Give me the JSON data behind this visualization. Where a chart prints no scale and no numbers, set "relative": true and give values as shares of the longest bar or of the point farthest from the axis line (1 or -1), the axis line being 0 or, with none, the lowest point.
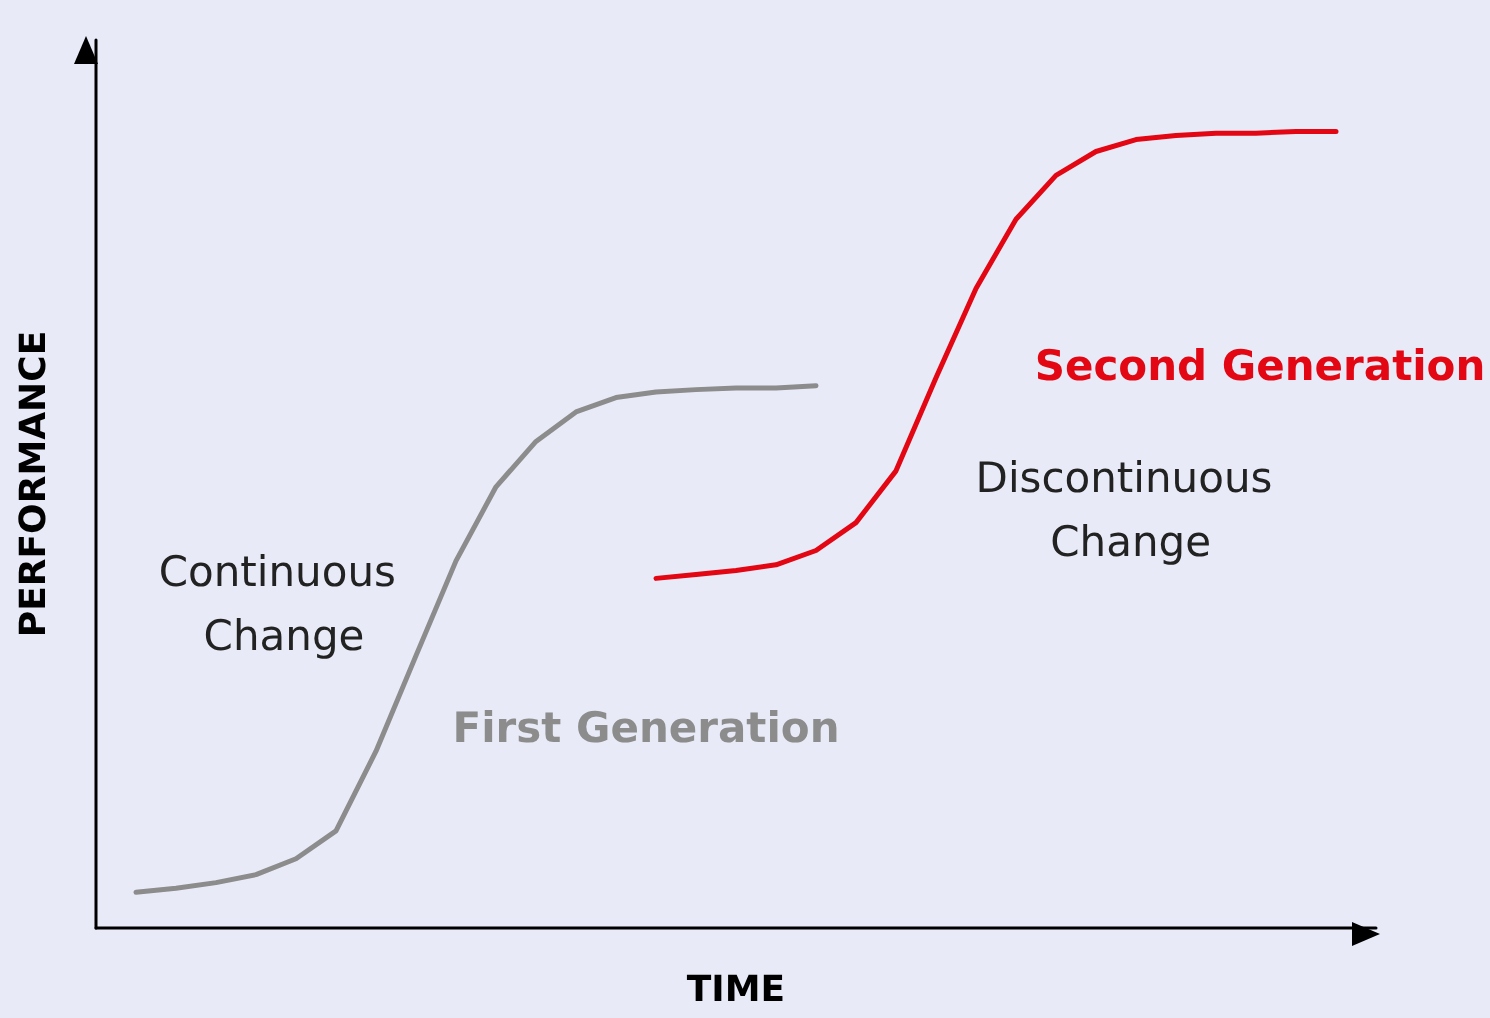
{
  "chart_data": {
    "type": "line",
    "relative": true,
    "xlabel": "TIME",
    "ylabel": "PERFORMANCE",
    "legend": false,
    "marker": "none",
    "line_style": "solid",
    "grid": false,
    "categories": [
      null,
      null,
      null,
      null,
      null,
      null,
      null,
      null,
      null,
      null,
      null,
      null,
      null,
      null,
      null,
      null,
      null,
      null,
      null,
      null,
      null,
      null,
      null,
      null,
      null,
      null,
      null,
      null,
      null,
      null,
      null,
      null,
      null
    ],
    "series": [
      {
        "name": "First Generation",
        "color": "#8c8c8c",
        "values": [
          null,
          0.045,
          0.05,
          0.057,
          0.067,
          0.087,
          0.122,
          0.222,
          0.342,
          0.461,
          0.554,
          0.611,
          0.648,
          0.666,
          0.673,
          0.676,
          0.678,
          0.678,
          0.681,
          null,
          null,
          null,
          null,
          null,
          null,
          null,
          null,
          null,
          null,
          null,
          null,
          null,
          null
        ]
      },
      {
        "name": "Second Generation",
        "color": "#e30613",
        "values": [
          null,
          null,
          null,
          null,
          null,
          null,
          null,
          null,
          null,
          null,
          null,
          null,
          null,
          null,
          0.439,
          0.444,
          0.449,
          0.456,
          0.474,
          0.509,
          0.574,
          0.691,
          0.803,
          0.89,
          0.945,
          0.975,
          0.99,
          0.995,
          0.998,
          0.998,
          1,
          1,
          null
        ]
      }
    ],
    "annotations": [
      "Continuous Change",
      "Discontinuous Change"
    ]
  }
}
